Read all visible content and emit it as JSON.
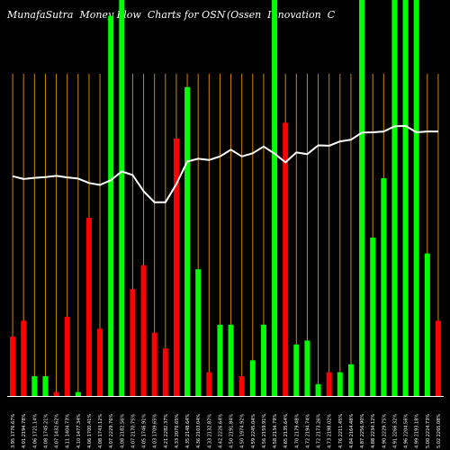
{
  "chart_data": {
    "type": "bar",
    "title_left": "MunafaSutra  Money Flow  Charts for OSN",
    "title_right": "(Ossen  Innovation  C",
    "colors": {
      "background": "#000000",
      "up": "#00ff00",
      "down": "#ff0000",
      "grid": "#cc8800",
      "line": "#ffffff"
    },
    "ylim": [
      0,
      100
    ],
    "grid": true,
    "categories": [
      "3.95 1776.67%",
      "4.01 2194.78%",
      "4.06 1721.14%",
      "4.08 1745.21%",
      "4.07 1432.62%",
      "4.11 1404.73%",
      "4.10 1477.34%",
      "4.06 1700.41%",
      "4.08 1743.12%",
      "4.07 2229.76%",
      "4.08 2182.56%",
      "4.07 2170.75%",
      "4.05 1746.91%",
      "4.03 1709.65%",
      "4.21 2282.37%",
      "4.33 2076.65%",
      "4.35 2148.64%",
      "4.36 2103.04%",
      "4.33 2132.87%",
      "4.42 2226.64%",
      "4.50 2191.84%",
      "4.50 1974.92%",
      "4.59 2245.04%",
      "4.56 2159.91%",
      "4.58 2134.79%",
      "4.65 2135.64%",
      "4.70 2179.48%",
      "4.72 2194.74%",
      "4.72 2173.26%",
      "4.73 2198.02%",
      "4.76 2211.45%",
      "4.84 2164.48%",
      "4.87 2256.90%",
      "4.88 2234.12%",
      "4.90 2229.75%",
      "4.91 2266.32%",
      "4.96 2204.56%",
      "4.99 2193.18%",
      "5.00 2224.73%",
      "5.02 2265.08%"
    ],
    "values": [
      15,
      19,
      5,
      5,
      1,
      20,
      1,
      45,
      17,
      96,
      100,
      27,
      33,
      16,
      12,
      65,
      78,
      32,
      6,
      18,
      18,
      5,
      9,
      18,
      100,
      69,
      13,
      14,
      3,
      6,
      6,
      8,
      100,
      40,
      55,
      100,
      100,
      100,
      36,
      19
    ],
    "directions": [
      "down",
      "down",
      "up",
      "up",
      "down",
      "down",
      "up",
      "down",
      "down",
      "up",
      "up",
      "down",
      "down",
      "down",
      "down",
      "down",
      "up",
      "up",
      "down",
      "up",
      "up",
      "down",
      "up",
      "up",
      "up",
      "down",
      "up",
      "up",
      "up",
      "down",
      "up",
      "up",
      "up",
      "up",
      "up",
      "up",
      "up",
      "up",
      "up",
      "down"
    ],
    "line_values": [
      55.5,
      54.8,
      55.1,
      55.3,
      55.6,
      55.2,
      54.9,
      53.8,
      53.3,
      54.5,
      56.7,
      55.8,
      51.7,
      48.9,
      48.9,
      53.5,
      59.2,
      59.9,
      59.6,
      60.5,
      62.2,
      60.5,
      61.3,
      63.0,
      61.2,
      59.0,
      61.5,
      61.1,
      63.3,
      63.2,
      64.3,
      64.7,
      66.5,
      66.6,
      66.8,
      68.1,
      68.2,
      66.6,
      66.8,
      66.8
    ]
  }
}
